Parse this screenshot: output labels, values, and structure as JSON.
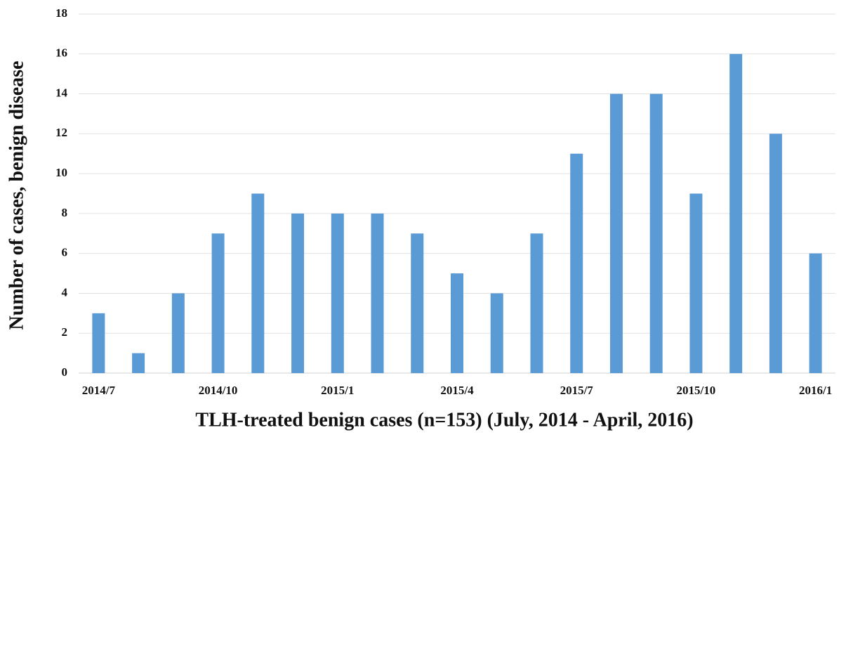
{
  "chart_data": {
    "type": "bar",
    "x_label": "TLH-treated benign cases (n=153) (July, 2014 - April, 2016)",
    "y_label": "Number of cases,  benign disease",
    "categories": [
      "2014/7",
      null,
      null,
      "2014/10",
      null,
      null,
      "2015/1",
      null,
      null,
      "2015/4",
      null,
      null,
      "2015/7",
      null,
      null,
      "2015/10",
      null,
      null,
      "2016/1"
    ],
    "values": [
      3,
      1,
      4,
      7,
      9,
      8,
      8,
      8,
      7,
      5,
      4,
      7,
      11,
      14,
      14,
      9,
      16,
      12,
      6
    ],
    "color": "#5b9bd5",
    "ylim": [
      0,
      18
    ],
    "yticks": [
      0,
      2,
      4,
      6,
      8,
      10,
      12,
      14,
      16,
      18
    ],
    "grid": true
  }
}
